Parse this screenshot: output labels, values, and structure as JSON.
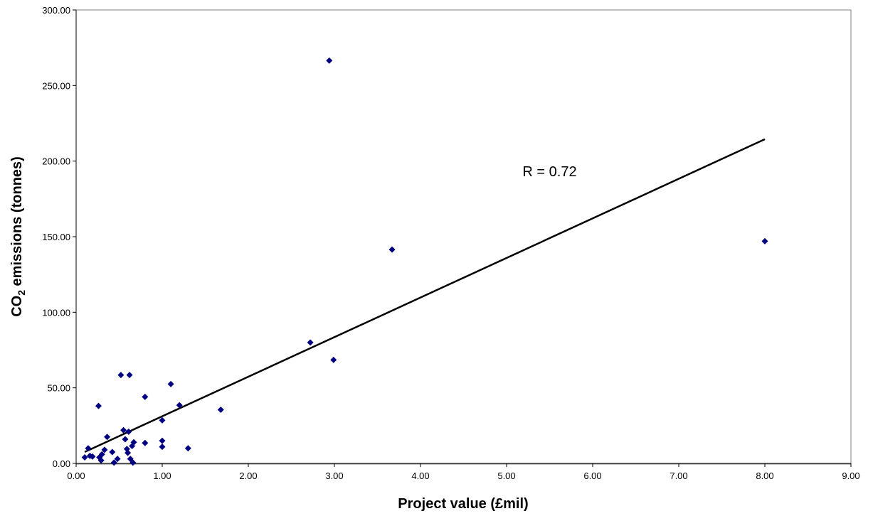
{
  "chart_data": {
    "type": "scatter",
    "title": "",
    "xlabel": "Project value (£mil)",
    "ylabel_main": "CO",
    "ylabel_sub": "2",
    "ylabel_rest": " emissions (tonnes)",
    "xlim": [
      0,
      9
    ],
    "ylim": [
      0,
      300
    ],
    "x_ticks": [
      "0.00",
      "1.00",
      "2.00",
      "3.00",
      "4.00",
      "5.00",
      "6.00",
      "7.00",
      "8.00",
      "9.00"
    ],
    "y_ticks": [
      "0.00",
      "50.00",
      "100.00",
      "150.00",
      "200.00",
      "250.00",
      "300.00"
    ],
    "grid": false,
    "legend": "none",
    "marker_color": "#000080",
    "trendline_color": "#000000",
    "series": [
      {
        "points": [
          [
            0.1,
            4.0
          ],
          [
            0.14,
            10.0
          ],
          [
            0.16,
            5.0
          ],
          [
            0.19,
            4.5
          ],
          [
            0.26,
            38.0
          ],
          [
            0.27,
            4.0
          ],
          [
            0.29,
            2.0
          ],
          [
            0.3,
            6.0
          ],
          [
            0.33,
            9.0
          ],
          [
            0.36,
            17.5
          ],
          [
            0.42,
            7.5
          ],
          [
            0.44,
            0.5
          ],
          [
            0.48,
            3.0
          ],
          [
            0.52,
            58.5
          ],
          [
            0.55,
            22.0
          ],
          [
            0.57,
            16.0
          ],
          [
            0.59,
            9.5
          ],
          [
            0.6,
            7.0
          ],
          [
            0.61,
            21.0
          ],
          [
            0.62,
            58.5
          ],
          [
            0.63,
            3.0
          ],
          [
            0.65,
            11.5
          ],
          [
            0.66,
            0.5
          ],
          [
            0.67,
            14.0
          ],
          [
            0.8,
            44.0
          ],
          [
            0.8,
            13.5
          ],
          [
            1.0,
            28.5
          ],
          [
            1.0,
            15.0
          ],
          [
            1.0,
            11.0
          ],
          [
            1.1,
            52.5
          ],
          [
            1.2,
            38.5
          ],
          [
            1.3,
            10.0
          ],
          [
            1.68,
            35.5
          ],
          [
            2.72,
            80.0
          ],
          [
            2.94,
            266.5
          ],
          [
            2.99,
            68.5
          ],
          [
            3.67,
            141.5
          ],
          [
            8.0,
            147.0
          ]
        ]
      }
    ],
    "trendline": {
      "x": [
        0.1,
        8.0
      ],
      "y": [
        7.6,
        214.5
      ]
    },
    "annotation": {
      "text": "R = 0.72",
      "x": 5.5,
      "y": 190
    }
  }
}
